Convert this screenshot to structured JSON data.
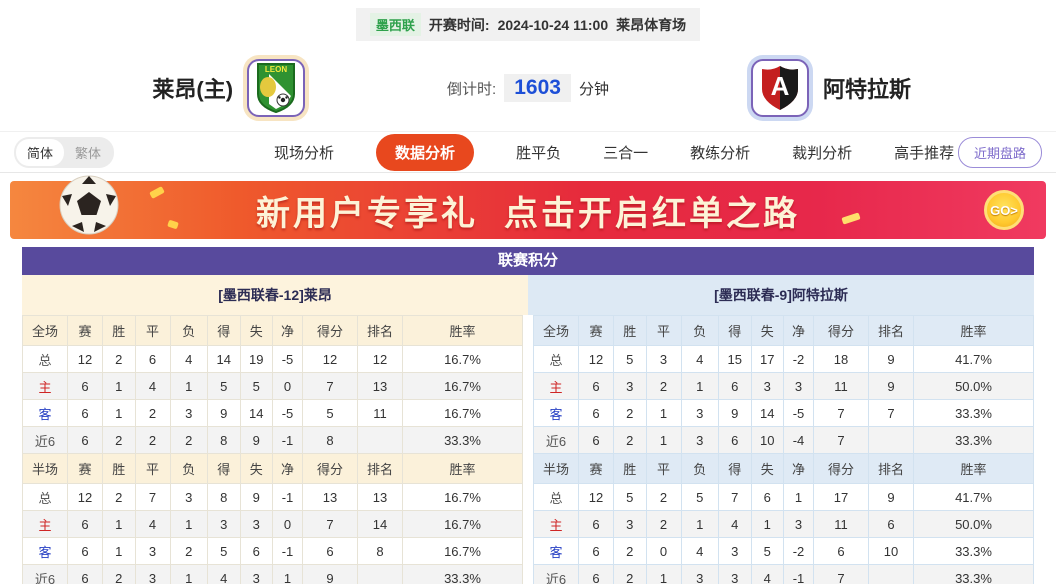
{
  "top_bar": {
    "league": "墨西联",
    "kickoff_label": "开赛时间:",
    "kickoff_time": "2024-10-24 11:00",
    "venue": "莱昂体育场"
  },
  "match": {
    "home": {
      "name": "莱昂(主)",
      "logo_text": "LEON"
    },
    "away": {
      "name": "阿特拉斯",
      "logo_text": "A"
    },
    "countdown": {
      "label": "倒计时:",
      "value": "1603",
      "unit": "分钟"
    }
  },
  "nav": {
    "lang_simplified": "简体",
    "lang_traditional": "繁体",
    "tabs": [
      {
        "label": "现场分析",
        "active": false
      },
      {
        "label": "数据分析",
        "active": true
      },
      {
        "label": "胜平负",
        "active": false
      },
      {
        "label": "三合一",
        "active": false
      },
      {
        "label": "教练分析",
        "active": false
      },
      {
        "label": "裁判分析",
        "active": false
      },
      {
        "label": "高手推荐",
        "active": false
      }
    ],
    "recent_trend_button": "近期盘路"
  },
  "banner": {
    "text_main": "新用户专享礼",
    "text_sub": "点击开启红单之路",
    "go_label": "GO>"
  },
  "colors": {
    "accent_red": "#e8481e",
    "purple_header": "#584a9d",
    "home_theme": "#fdf3dd",
    "away_theme": "#dde9f4",
    "countdown_blue": "#1d4fd7"
  },
  "standings": {
    "title": "联赛积分",
    "columns_full": [
      "全场",
      "赛",
      "胜",
      "平",
      "负",
      "得",
      "失",
      "净",
      "得分",
      "排名",
      "胜率"
    ],
    "columns_half": [
      "半场",
      "赛",
      "胜",
      "平",
      "负",
      "得",
      "失",
      "净",
      "得分",
      "排名",
      "胜率"
    ],
    "home": {
      "header": "[墨西联春-12]莱昂",
      "full": [
        {
          "type": "total",
          "label": "总",
          "cells": [
            "12",
            "2",
            "6",
            "4",
            "14",
            "19",
            "-5",
            "12",
            "12",
            "16.7%"
          ]
        },
        {
          "type": "home",
          "label": "主",
          "cells": [
            "6",
            "1",
            "4",
            "1",
            "5",
            "5",
            "0",
            "7",
            "13",
            "16.7%"
          ]
        },
        {
          "type": "away",
          "label": "客",
          "cells": [
            "6",
            "1",
            "2",
            "3",
            "9",
            "14",
            "-5",
            "5",
            "11",
            "16.7%"
          ]
        },
        {
          "type": "recent",
          "label": "近6",
          "cells": [
            "6",
            "2",
            "2",
            "2",
            "8",
            "9",
            "-1",
            "8",
            "",
            "33.3%"
          ]
        }
      ],
      "half": [
        {
          "type": "total",
          "label": "总",
          "cells": [
            "12",
            "2",
            "7",
            "3",
            "8",
            "9",
            "-1",
            "13",
            "13",
            "16.7%"
          ]
        },
        {
          "type": "home",
          "label": "主",
          "cells": [
            "6",
            "1",
            "4",
            "1",
            "3",
            "3",
            "0",
            "7",
            "14",
            "16.7%"
          ]
        },
        {
          "type": "away",
          "label": "客",
          "cells": [
            "6",
            "1",
            "3",
            "2",
            "5",
            "6",
            "-1",
            "6",
            "8",
            "16.7%"
          ]
        },
        {
          "type": "recent",
          "label": "近6",
          "cells": [
            "6",
            "2",
            "3",
            "1",
            "4",
            "3",
            "1",
            "9",
            "",
            "33.3%"
          ]
        }
      ]
    },
    "away": {
      "header": "[墨西联春-9]阿特拉斯",
      "full": [
        {
          "type": "total",
          "label": "总",
          "cells": [
            "12",
            "5",
            "3",
            "4",
            "15",
            "17",
            "-2",
            "18",
            "9",
            "41.7%"
          ]
        },
        {
          "type": "home",
          "label": "主",
          "cells": [
            "6",
            "3",
            "2",
            "1",
            "6",
            "3",
            "3",
            "11",
            "9",
            "50.0%"
          ]
        },
        {
          "type": "away",
          "label": "客",
          "cells": [
            "6",
            "2",
            "1",
            "3",
            "9",
            "14",
            "-5",
            "7",
            "7",
            "33.3%"
          ]
        },
        {
          "type": "recent",
          "label": "近6",
          "cells": [
            "6",
            "2",
            "1",
            "3",
            "6",
            "10",
            "-4",
            "7",
            "",
            "33.3%"
          ]
        }
      ],
      "half": [
        {
          "type": "total",
          "label": "总",
          "cells": [
            "12",
            "5",
            "2",
            "5",
            "7",
            "6",
            "1",
            "17",
            "9",
            "41.7%"
          ]
        },
        {
          "type": "home",
          "label": "主",
          "cells": [
            "6",
            "3",
            "2",
            "1",
            "4",
            "1",
            "3",
            "11",
            "6",
            "50.0%"
          ]
        },
        {
          "type": "away",
          "label": "客",
          "cells": [
            "6",
            "2",
            "0",
            "4",
            "3",
            "5",
            "-2",
            "6",
            "10",
            "33.3%"
          ]
        },
        {
          "type": "recent",
          "label": "近6",
          "cells": [
            "6",
            "2",
            "1",
            "3",
            "3",
            "4",
            "-1",
            "7",
            "",
            "33.3%"
          ]
        }
      ]
    }
  }
}
